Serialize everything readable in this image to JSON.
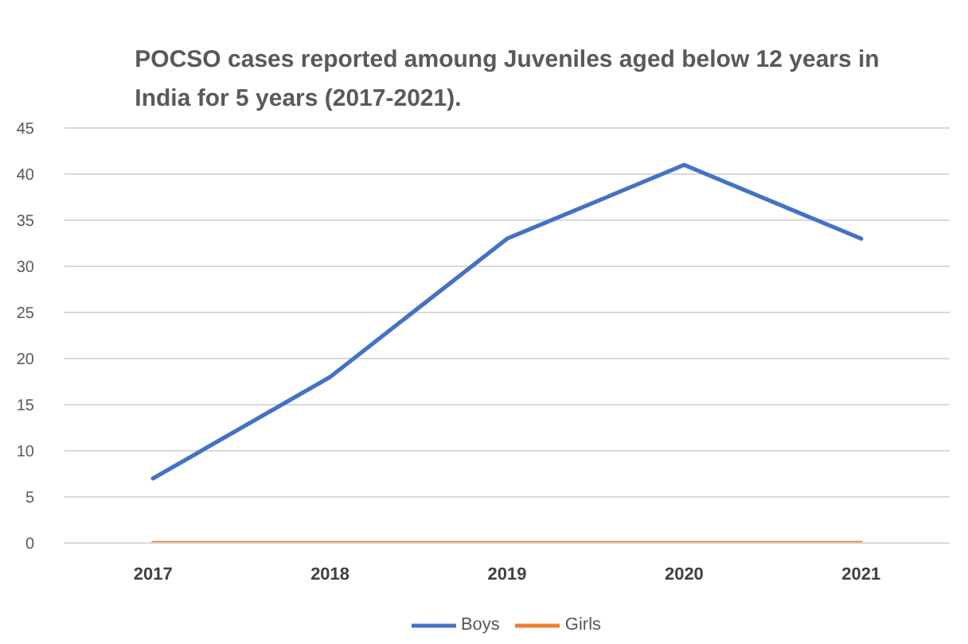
{
  "chart_data": {
    "type": "line",
    "title": "POCSO cases reported amoung Juveniles aged below 12 years in India for 5 years (2017-2021).",
    "categories": [
      "2017",
      "2018",
      "2019",
      "2020",
      "2021"
    ],
    "series": [
      {
        "name": "Boys",
        "color": "#4472c4",
        "values": [
          7,
          18,
          33,
          41,
          33
        ]
      },
      {
        "name": "Girls",
        "color": "#ed7d31",
        "values": [
          0,
          0,
          0,
          0,
          0
        ]
      }
    ],
    "ylim": [
      0,
      45
    ],
    "yticks": [
      0,
      5,
      10,
      15,
      20,
      25,
      30,
      35,
      40,
      45
    ],
    "grid": "y",
    "legend": "bottom"
  }
}
